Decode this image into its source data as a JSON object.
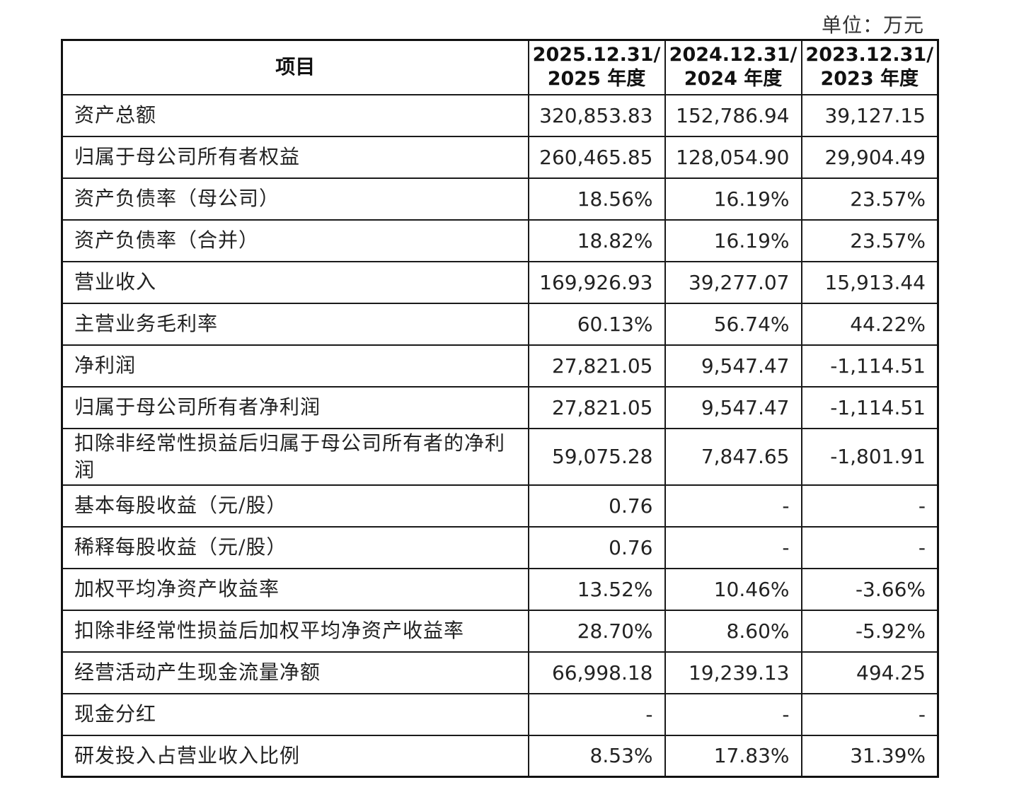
{
  "unit_label": "单位：万元",
  "table": {
    "headers": {
      "item": "项目",
      "col1_line1": "2025.12.31/",
      "col1_line2": "2025 年度",
      "col2_line1": "2024.12.31/",
      "col2_line2": "2024 年度",
      "col3_line1": "2023.12.31/",
      "col3_line2": "2023 年度"
    },
    "rows": [
      {
        "label": "资产总额",
        "v2025": "320,853.83",
        "v2024": "152,786.94",
        "v2023": "39,127.15"
      },
      {
        "label": "归属于母公司所有者权益",
        "v2025": "260,465.85",
        "v2024": "128,054.90",
        "v2023": "29,904.49"
      },
      {
        "label": "资产负债率（母公司）",
        "v2025": "18.56%",
        "v2024": "16.19%",
        "v2023": "23.57%"
      },
      {
        "label": "资产负债率（合并）",
        "v2025": "18.82%",
        "v2024": "16.19%",
        "v2023": "23.57%"
      },
      {
        "label": "营业收入",
        "v2025": "169,926.93",
        "v2024": "39,277.07",
        "v2023": "15,913.44"
      },
      {
        "label": "主营业务毛利率",
        "v2025": "60.13%",
        "v2024": "56.74%",
        "v2023": "44.22%"
      },
      {
        "label": "净利润",
        "v2025": "27,821.05",
        "v2024": "9,547.47",
        "v2023": "-1,114.51"
      },
      {
        "label": "归属于母公司所有者净利润",
        "v2025": "27,821.05",
        "v2024": "9,547.47",
        "v2023": "-1,114.51"
      },
      {
        "label": "扣除非经常性损益后归属于母公司所有者的净利润",
        "v2025": "59,075.28",
        "v2024": "7,847.65",
        "v2023": "-1,801.91"
      },
      {
        "label": "基本每股收益（元/股）",
        "v2025": "0.76",
        "v2024": "-",
        "v2023": "-"
      },
      {
        "label": "稀释每股收益（元/股）",
        "v2025": "0.76",
        "v2024": "-",
        "v2023": "-"
      },
      {
        "label": "加权平均净资产收益率",
        "v2025": "13.52%",
        "v2024": "10.46%",
        "v2023": "-3.66%"
      },
      {
        "label": "扣除非经常性损益后加权平均净资产收益率",
        "v2025": "28.70%",
        "v2024": "8.60%",
        "v2023": "-5.92%"
      },
      {
        "label": "经营活动产生现金流量净额",
        "v2025": "66,998.18",
        "v2024": "19,239.13",
        "v2023": "494.25"
      },
      {
        "label": "现金分红",
        "v2025": "-",
        "v2024": "-",
        "v2023": "-"
      },
      {
        "label": "研发投入占营业收入比例",
        "v2025": "8.53%",
        "v2024": "17.83%",
        "v2023": "31.39%"
      }
    ]
  }
}
